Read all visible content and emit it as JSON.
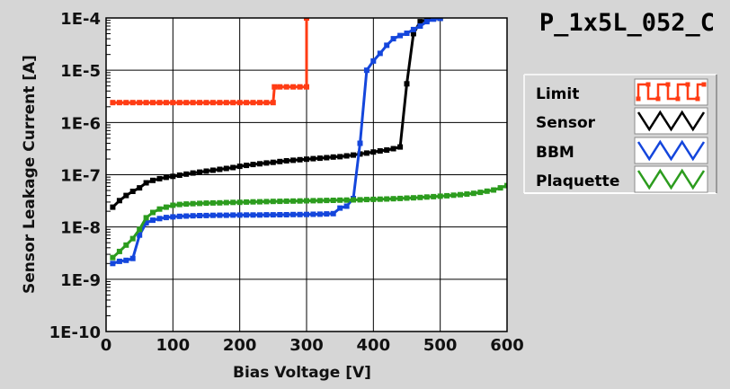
{
  "chart_data": {
    "type": "line",
    "title": "P_1x5L_052_C",
    "xlabel": "Bias Voltage [V]",
    "ylabel": "Sensor Leakage Current [A]",
    "xlim": [
      0,
      600
    ],
    "ylim": [
      1e-10,
      0.0001
    ],
    "yscale": "log",
    "grid": true,
    "legend_position": "right",
    "xticks": [
      0,
      100,
      200,
      300,
      400,
      500,
      600
    ],
    "xtick_labels": [
      "0",
      "100",
      "200",
      "300",
      "400",
      "500",
      "600"
    ],
    "yticks": [
      1e-10,
      1e-09,
      1e-08,
      1e-07,
      1e-06,
      1e-05,
      0.0001
    ],
    "ytick_labels": [
      "1E-10",
      "1E-9",
      "1E-8",
      "1E-7",
      "1E-6",
      "1E-5",
      "1E-4"
    ],
    "series": [
      {
        "name": "Limit",
        "color": "#ff3c14",
        "x": [
          10,
          20,
          30,
          40,
          50,
          60,
          70,
          80,
          90,
          100,
          110,
          120,
          130,
          140,
          150,
          160,
          170,
          180,
          190,
          200,
          210,
          220,
          230,
          240,
          250,
          252,
          260,
          270,
          280,
          290,
          300,
          300
        ],
        "y": [
          2.4e-06,
          2.4e-06,
          2.4e-06,
          2.4e-06,
          2.4e-06,
          2.4e-06,
          2.4e-06,
          2.4e-06,
          2.4e-06,
          2.4e-06,
          2.4e-06,
          2.4e-06,
          2.4e-06,
          2.4e-06,
          2.4e-06,
          2.4e-06,
          2.4e-06,
          2.4e-06,
          2.4e-06,
          2.4e-06,
          2.4e-06,
          2.4e-06,
          2.4e-06,
          2.4e-06,
          2.4e-06,
          4.8e-06,
          4.8e-06,
          4.8e-06,
          4.8e-06,
          4.8e-06,
          4.8e-06,
          0.0001
        ]
      },
      {
        "name": "Sensor",
        "color": "#000000",
        "x": [
          10,
          20,
          30,
          40,
          50,
          60,
          70,
          80,
          90,
          100,
          110,
          120,
          130,
          140,
          150,
          160,
          170,
          180,
          190,
          200,
          210,
          220,
          230,
          240,
          250,
          260,
          270,
          280,
          290,
          300,
          310,
          320,
          330,
          340,
          350,
          360,
          370,
          380,
          390,
          400,
          410,
          420,
          430,
          440,
          450,
          460,
          470,
          480,
          490,
          500
        ],
        "y": [
          2.4e-08,
          3.2e-08,
          4e-08,
          4.8e-08,
          5.6e-08,
          7e-08,
          7.8e-08,
          8.4e-08,
          8.9e-08,
          9.3e-08,
          9.8e-08,
          1.03e-07,
          1.08e-07,
          1.12e-07,
          1.17e-07,
          1.22e-07,
          1.27e-07,
          1.32e-07,
          1.37e-07,
          1.45e-07,
          1.51e-07,
          1.57e-07,
          1.62e-07,
          1.68e-07,
          1.73e-07,
          1.79e-07,
          1.85e-07,
          1.89e-07,
          1.94e-07,
          1.98e-07,
          2.03e-07,
          2.07e-07,
          2.12e-07,
          2.18e-07,
          2.22e-07,
          2.3e-07,
          2.38e-07,
          2.5e-07,
          2.6e-07,
          2.72e-07,
          2.85e-07,
          2.97e-07,
          3.15e-07,
          3.4e-07,
          5.5e-06,
          5e-05,
          8.5e-05,
          9.3e-05,
          9.6e-05,
          9.8e-05
        ]
      },
      {
        "name": "BBM",
        "color": "#1446dc",
        "x": [
          10,
          20,
          30,
          40,
          50,
          60,
          70,
          80,
          90,
          100,
          110,
          120,
          130,
          140,
          150,
          160,
          170,
          180,
          190,
          200,
          210,
          220,
          230,
          240,
          250,
          260,
          270,
          280,
          290,
          300,
          310,
          320,
          330,
          340,
          350,
          360,
          370,
          380,
          390,
          400,
          410,
          420,
          430,
          440,
          450,
          460,
          470,
          480,
          490,
          500
        ],
        "y": [
          2e-09,
          2.2e-09,
          2.3e-09,
          2.5e-09,
          7e-09,
          1.2e-08,
          1.35e-08,
          1.45e-08,
          1.52e-08,
          1.56e-08,
          1.6e-08,
          1.62e-08,
          1.64e-08,
          1.65e-08,
          1.66e-08,
          1.67e-08,
          1.68e-08,
          1.68e-08,
          1.69e-08,
          1.69e-08,
          1.7e-08,
          1.7e-08,
          1.7e-08,
          1.71e-08,
          1.71e-08,
          1.72e-08,
          1.72e-08,
          1.73e-08,
          1.73e-08,
          1.74e-08,
          1.75e-08,
          1.76e-08,
          1.78e-08,
          1.8e-08,
          2.3e-08,
          2.5e-08,
          3.5e-08,
          4e-07,
          1e-05,
          1.5e-05,
          2.1e-05,
          3e-05,
          4e-05,
          4.6e-05,
          5.1e-05,
          6e-05,
          7e-05,
          8.5e-05,
          9.5e-05,
          9.8e-05
        ]
      },
      {
        "name": "Plaquette",
        "color": "#2c9c1e",
        "x": [
          10,
          20,
          30,
          40,
          50,
          60,
          70,
          80,
          90,
          100,
          110,
          120,
          130,
          140,
          150,
          160,
          170,
          180,
          190,
          200,
          210,
          220,
          230,
          240,
          250,
          260,
          270,
          280,
          290,
          300,
          310,
          320,
          330,
          340,
          350,
          360,
          370,
          380,
          390,
          400,
          410,
          420,
          430,
          440,
          450,
          460,
          470,
          480,
          490,
          500,
          510,
          520,
          530,
          540,
          550,
          560,
          570,
          580,
          590,
          600
        ],
        "y": [
          2.6e-09,
          3.4e-09,
          4.5e-09,
          6e-09,
          9e-09,
          1.5e-08,
          1.9e-08,
          2.2e-08,
          2.4e-08,
          2.6e-08,
          2.7e-08,
          2.75e-08,
          2.8e-08,
          2.83e-08,
          2.86e-08,
          2.88e-08,
          2.9e-08,
          2.93e-08,
          2.95e-08,
          2.97e-08,
          3e-08,
          3.02e-08,
          3.04e-08,
          3.06e-08,
          3.08e-08,
          3.1e-08,
          3.12e-08,
          3.13e-08,
          3.15e-08,
          3.17e-08,
          3.18e-08,
          3.2e-08,
          3.22e-08,
          3.24e-08,
          3.26e-08,
          3.28e-08,
          3.3e-08,
          3.32e-08,
          3.35e-08,
          3.38e-08,
          3.41e-08,
          3.44e-08,
          3.48e-08,
          3.52e-08,
          3.57e-08,
          3.62e-08,
          3.68e-08,
          3.74e-08,
          3.8e-08,
          3.88e-08,
          3.96e-08,
          4.05e-08,
          4.15e-08,
          4.27e-08,
          4.4e-08,
          4.6e-08,
          4.85e-08,
          5.1e-08,
          5.6e-08,
          6.2e-08
        ]
      }
    ]
  }
}
